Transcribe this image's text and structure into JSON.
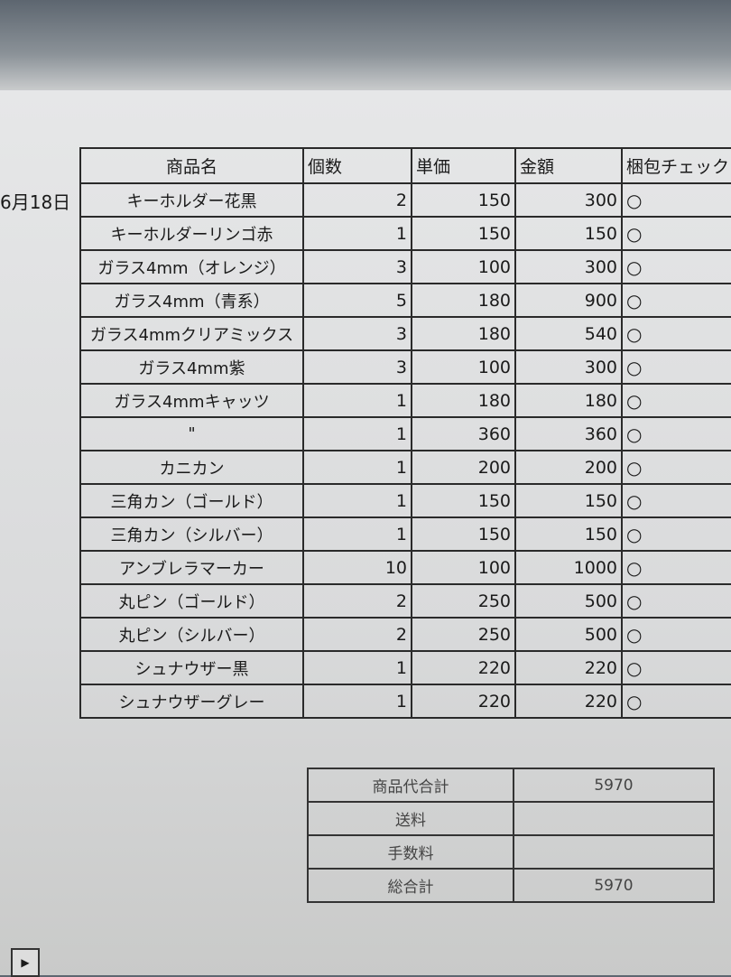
{
  "date": "6月18日",
  "headers": [
    "商品名",
    "個数",
    "単価",
    "金額",
    "梱包チェック"
  ],
  "rows": [
    {
      "name": "キーホルダー花黒",
      "qty": "2",
      "price": "150",
      "amount": "300",
      "check": "○"
    },
    {
      "name": "キーホルダーリンゴ赤",
      "qty": "1",
      "price": "150",
      "amount": "150",
      "check": "○"
    },
    {
      "name": "ガラス4mm（オレンジ）",
      "qty": "3",
      "price": "100",
      "amount": "300",
      "check": "○"
    },
    {
      "name": "ガラス4mm（青系）",
      "qty": "5",
      "price": "180",
      "amount": "900",
      "check": "○"
    },
    {
      "name": "ガラス4mmクリアミックス",
      "qty": "3",
      "price": "180",
      "amount": "540",
      "check": "○"
    },
    {
      "name": "ガラス4mm紫",
      "qty": "3",
      "price": "100",
      "amount": "300",
      "check": "○"
    },
    {
      "name": "ガラス4mmキャッツ",
      "qty": "1",
      "price": "180",
      "amount": "180",
      "check": "○"
    },
    {
      "name": "\"",
      "qty": "1",
      "price": "360",
      "amount": "360",
      "check": "○"
    },
    {
      "name": "カニカン",
      "qty": "1",
      "price": "200",
      "amount": "200",
      "check": "○"
    },
    {
      "name": "三角カン（ゴールド）",
      "qty": "1",
      "price": "150",
      "amount": "150",
      "check": "○"
    },
    {
      "name": "三角カン（シルバー）",
      "qty": "1",
      "price": "150",
      "amount": "150",
      "check": "○"
    },
    {
      "name": "アンブレラマーカー",
      "qty": "10",
      "price": "100",
      "amount": "1000",
      "check": "○"
    },
    {
      "name": "丸ピン（ゴールド）",
      "qty": "2",
      "price": "250",
      "amount": "500",
      "check": "○"
    },
    {
      "name": "丸ピン（シルバー）",
      "qty": "2",
      "price": "250",
      "amount": "500",
      "check": "○"
    },
    {
      "name": "シュナウザー黒",
      "qty": "1",
      "price": "220",
      "amount": "220",
      "check": "○"
    },
    {
      "name": "シュナウザーグレー",
      "qty": "1",
      "price": "220",
      "amount": "220",
      "check": "○"
    }
  ],
  "summary": [
    {
      "label": "商品代合計",
      "value": "5970"
    },
    {
      "label": "送料",
      "value": ""
    },
    {
      "label": "手数料",
      "value": ""
    },
    {
      "label": "総合計",
      "value": "5970"
    }
  ],
  "sheet_nav": "▶"
}
